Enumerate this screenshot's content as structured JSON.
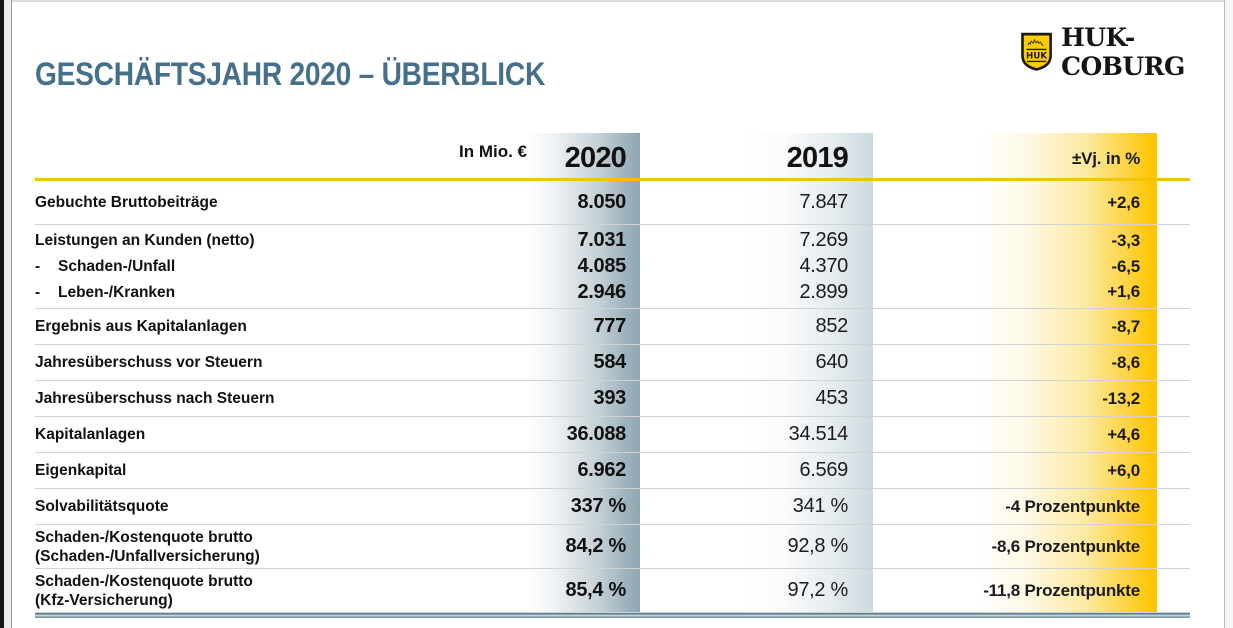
{
  "page": {
    "title": "GESCHÄFTSJAHR 2020 – ÜBERBLICK"
  },
  "logo": {
    "brand": "HUK-COBURG",
    "shield_text": "HUK"
  },
  "table": {
    "unit_label": "In Mio. €",
    "columns": [
      "2020",
      "2019",
      "±Vj. in %"
    ],
    "sub_dash": "-",
    "rows": [
      {
        "lines": [
          {
            "label": "Gebuchte Bruttobeiträge",
            "v2020": "8.050",
            "v2019": "7.847",
            "delta": "+2,6"
          }
        ]
      },
      {
        "lines": [
          {
            "label": "Leistungen an Kunden (netto)",
            "v2020": "7.031",
            "v2019": "7.269",
            "delta": "-3,3"
          },
          {
            "dash": true,
            "label": "Schaden-/Unfall",
            "v2020": "4.085",
            "v2019": "4.370",
            "delta": "-6,5"
          },
          {
            "dash": true,
            "label": "Leben-/Kranken",
            "v2020": "2.946",
            "v2019": "2.899",
            "delta": "+1,6"
          }
        ]
      },
      {
        "lines": [
          {
            "label": "Ergebnis aus Kapitalanlagen",
            "v2020": "777",
            "v2019": "852",
            "delta": "-8,7"
          }
        ]
      },
      {
        "lines": [
          {
            "label": "Jahresüberschuss vor Steuern",
            "v2020": "584",
            "v2019": "640",
            "delta": "-8,6"
          }
        ]
      },
      {
        "lines": [
          {
            "label": "Jahresüberschuss nach Steuern",
            "v2020": "393",
            "v2019": "453",
            "delta": "-13,2"
          }
        ]
      },
      {
        "lines": [
          {
            "label": "Kapitalanlagen",
            "v2020": "36.088",
            "v2019": "34.514",
            "delta": "+4,6"
          }
        ]
      },
      {
        "lines": [
          {
            "label": "Eigenkapital",
            "v2020": "6.962",
            "v2019": "6.569",
            "delta": "+6,0"
          }
        ]
      },
      {
        "lines": [
          {
            "label": "Solvabilitätsquote",
            "v2020": "337 %",
            "v2019": "341 %",
            "delta": "-4 Prozentpunkte"
          }
        ]
      },
      {
        "lines": [
          {
            "label": "Schaden-/Kostenquote brutto",
            "label2": "(Schaden-/Unfallversicherung)",
            "v2020": "84,2 %",
            "v2019": "92,8 %",
            "delta": "-8,6 Prozentpunkte"
          }
        ]
      },
      {
        "lines": [
          {
            "label": "Schaden-/Kostenquote brutto",
            "label2": "(Kfz-Versicherung)",
            "v2020": "85,4 %",
            "v2019": "97,2 %",
            "delta": "-11,8 Prozentpunkte"
          }
        ]
      }
    ]
  },
  "colors": {
    "gold": "#fcc700",
    "gold-line": "#f2c400",
    "band-2020-end": "#8fa6b1",
    "band-2019-end": "#ccd9de",
    "title-blue": "#46708a",
    "table-bottom": "#5f8192",
    "separator": "#d2d2d2",
    "logo-yellow": "#ffcc00"
  }
}
